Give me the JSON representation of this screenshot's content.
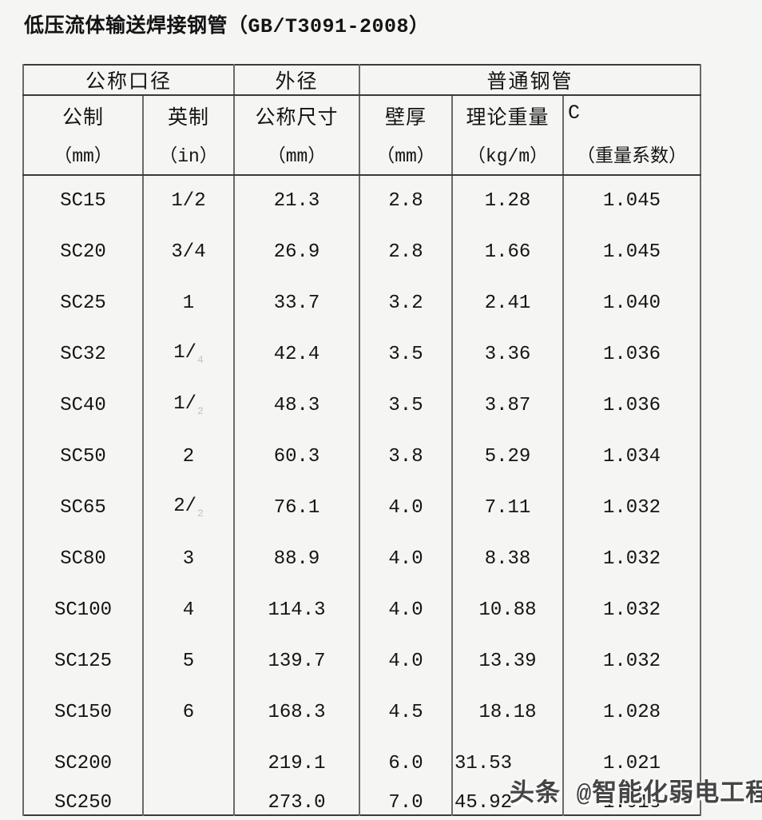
{
  "page": {
    "title": "低压流体输送焊接钢管（GB/T3091-2008）"
  },
  "watermark": {
    "text": "头条 @智能化弱电工程分享"
  },
  "colors": {
    "background": "#f5f5f3",
    "text": "#141414",
    "grid_horizontal": "#3a3a3a",
    "grid_vertical": "#6a6a6a",
    "watermark_text": "#454545"
  },
  "table": {
    "header_groups": [
      {
        "label": "公称口径",
        "span": 2
      },
      {
        "label": "外径",
        "span": 1
      },
      {
        "label": "普通钢管",
        "span": 3
      }
    ],
    "columns": [
      {
        "label": "公制",
        "unit": "（mm）"
      },
      {
        "label": "英制",
        "unit": "（in）"
      },
      {
        "label": "公称尺寸",
        "unit": "（mm）"
      },
      {
        "label": "壁厚",
        "unit": "（mm）"
      },
      {
        "label": "理论重量",
        "unit": "（kg/m）"
      },
      {
        "label": "C",
        "unit": "（重量系数）"
      }
    ],
    "rows": [
      {
        "metric": "SC15",
        "inch": "1/2",
        "od": "21.3",
        "wall": "2.8",
        "weight": "1.28",
        "coeff": "1.045"
      },
      {
        "metric": "SC20",
        "inch": "3/4",
        "od": "26.9",
        "wall": "2.8",
        "weight": "1.66",
        "coeff": "1.045"
      },
      {
        "metric": "SC25",
        "inch": "1",
        "od": "33.7",
        "wall": "3.2",
        "weight": "2.41",
        "coeff": "1.040"
      },
      {
        "metric": "SC32",
        "inch": "1/",
        "inch_faint": "4",
        "od": "42.4",
        "wall": "3.5",
        "weight": "3.36",
        "coeff": "1.036"
      },
      {
        "metric": "SC40",
        "inch": "1/",
        "inch_faint": "2",
        "od": "48.3",
        "wall": "3.5",
        "weight": "3.87",
        "coeff": "1.036"
      },
      {
        "metric": "SC50",
        "inch": "2",
        "od": "60.3",
        "wall": "3.8",
        "weight": "5.29",
        "coeff": "1.034"
      },
      {
        "metric": "SC65",
        "inch": "2/",
        "inch_faint": "2",
        "od": "76.1",
        "wall": "4.0",
        "weight": "7.11",
        "coeff": "1.032"
      },
      {
        "metric": "SC80",
        "inch": "3",
        "od": "88.9",
        "wall": "4.0",
        "weight": "8.38",
        "coeff": "1.032"
      },
      {
        "metric": "SC100",
        "inch": "4",
        "od": "114.3",
        "wall": "4.0",
        "weight": "10.88",
        "coeff": "1.032"
      },
      {
        "metric": "SC125",
        "inch": "5",
        "od": "139.7",
        "wall": "4.0",
        "weight": "13.39",
        "coeff": "1.032"
      },
      {
        "metric": "SC150",
        "inch": "6",
        "od": "168.3",
        "wall": "4.5",
        "weight": "18.18",
        "coeff": "1.028"
      },
      {
        "metric": "SC200",
        "inch": "",
        "od": "219.1",
        "wall": "6.0",
        "weight": "31.53",
        "weight_align": "left",
        "coeff": "1.021"
      },
      {
        "metric": "SC250",
        "inch": "",
        "od": "273.0",
        "wall": "7.0",
        "weight": "45.92",
        "weight_align": "left",
        "coeff": "1.018"
      }
    ]
  }
}
